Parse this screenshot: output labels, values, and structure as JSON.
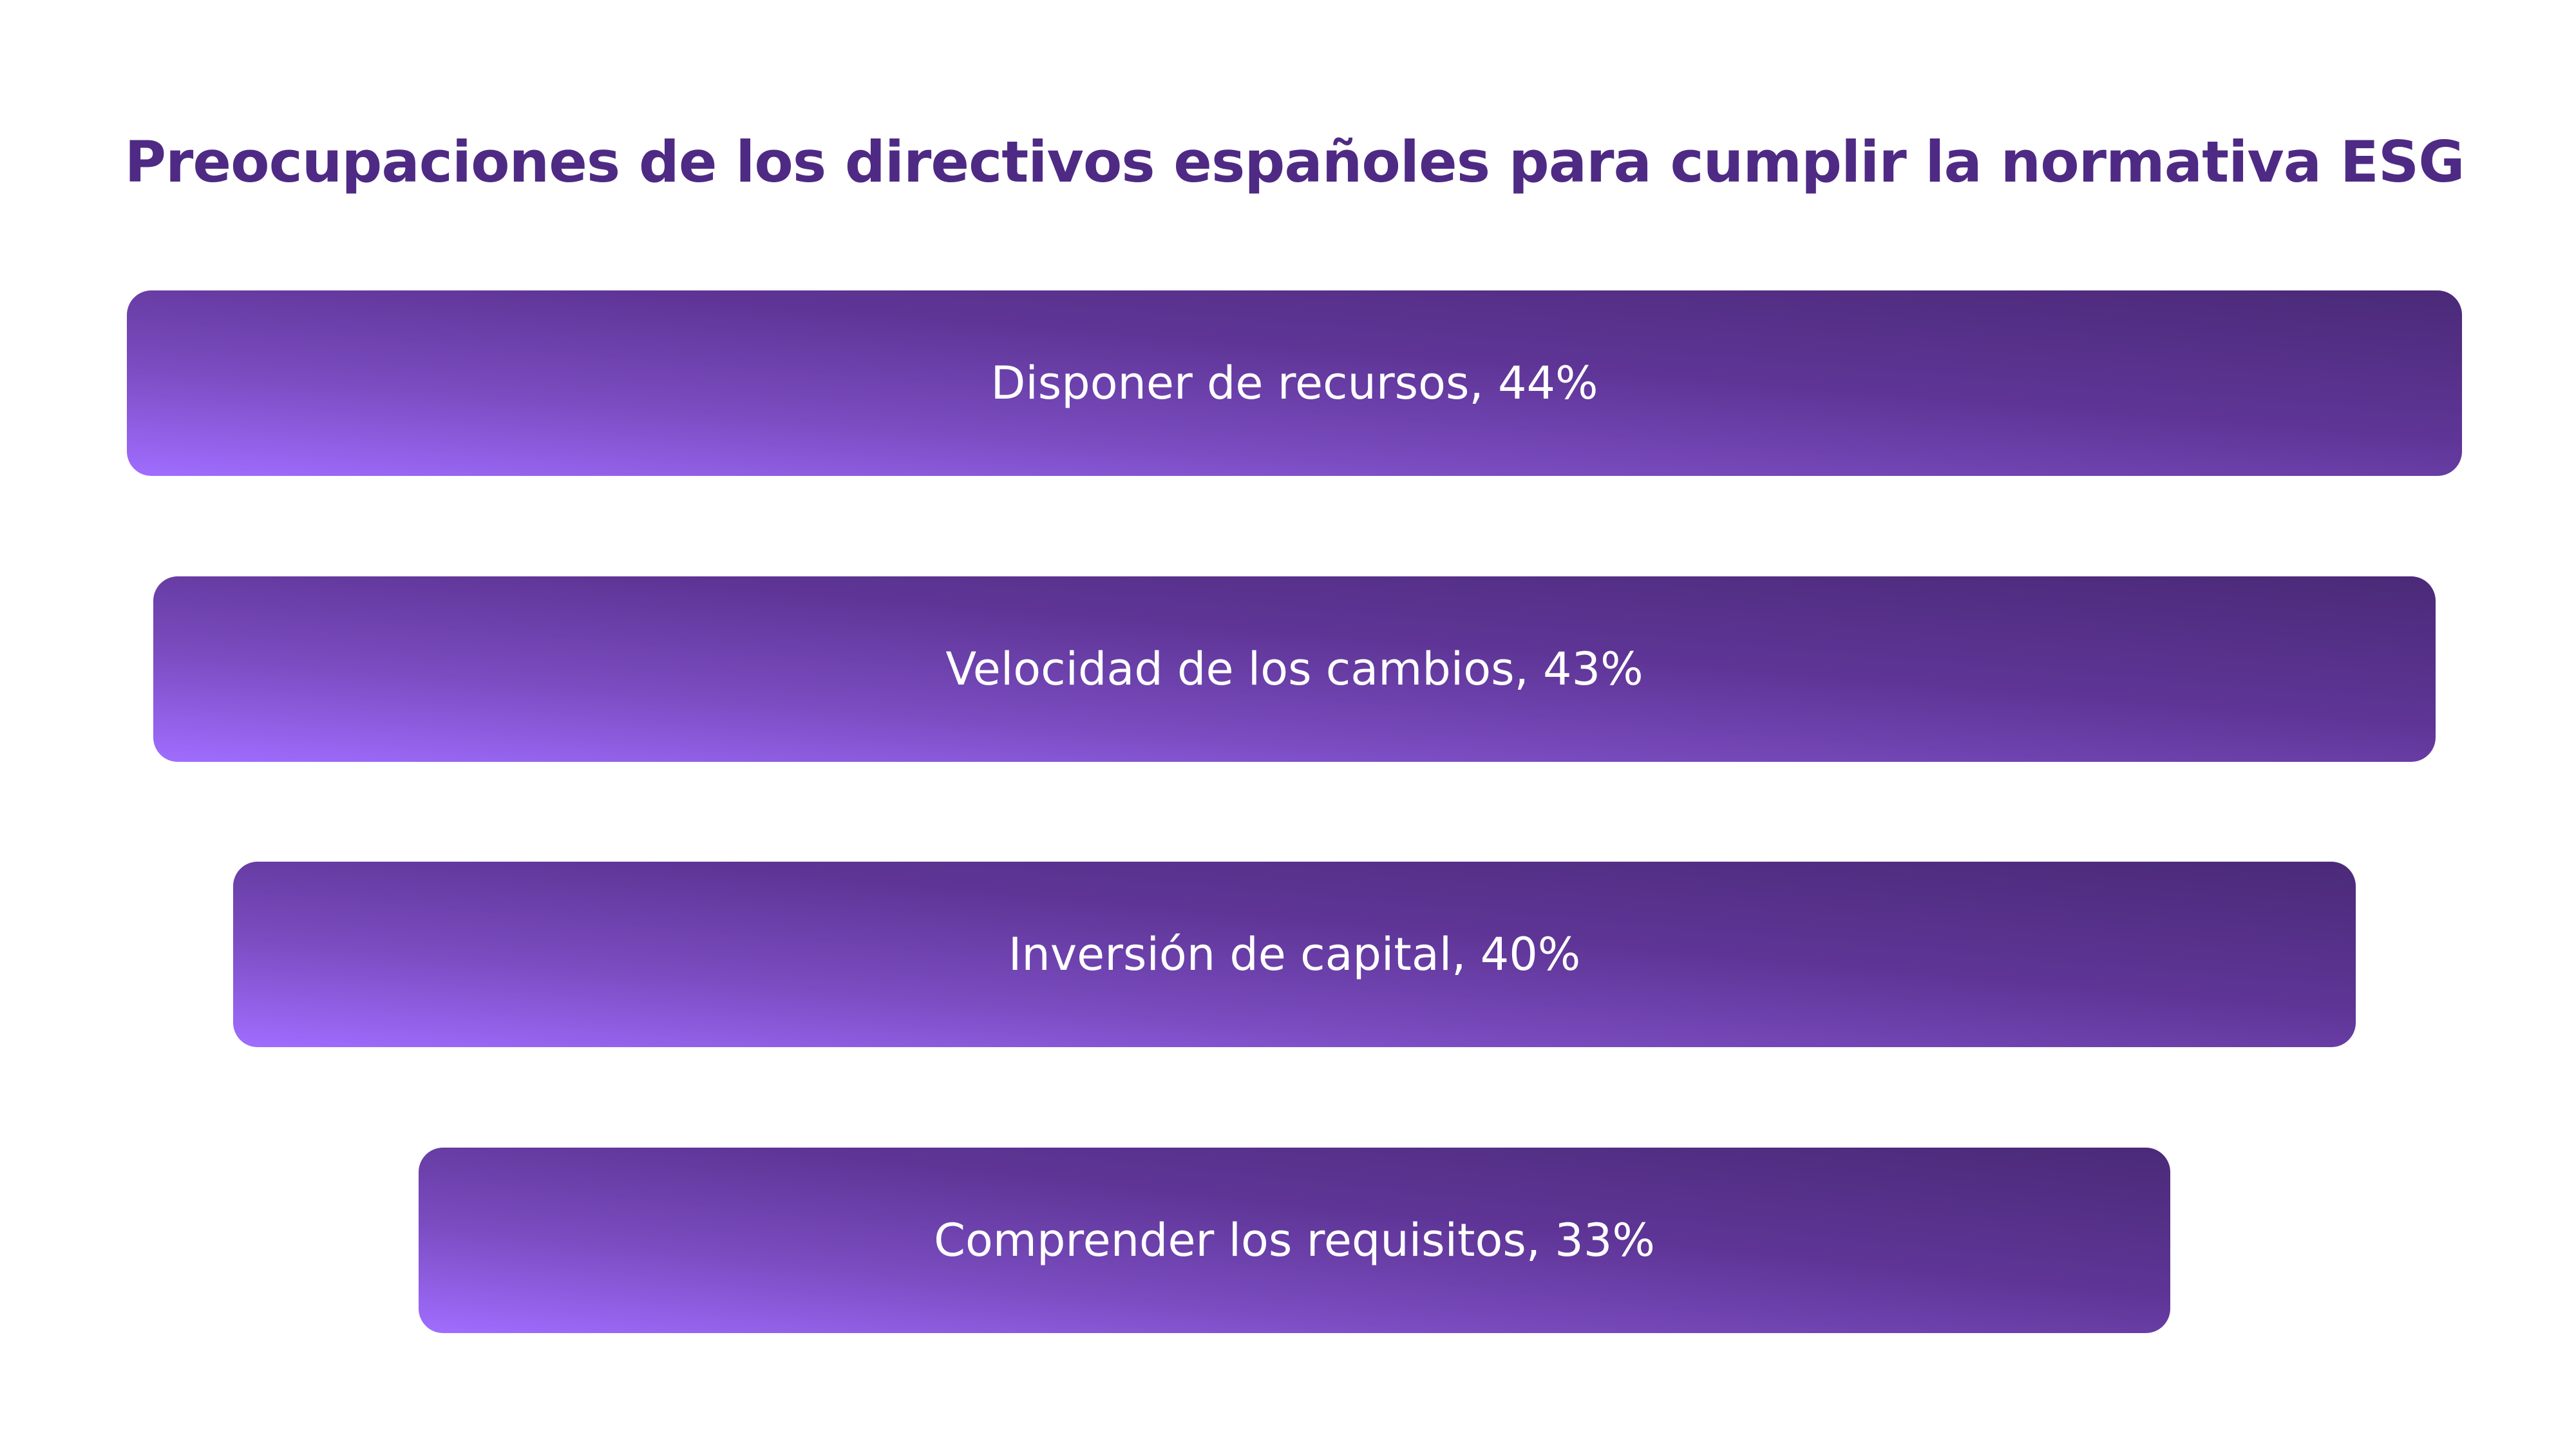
{
  "chart_data": {
    "type": "bar",
    "orientation": "horizontal-centered",
    "title": "Preocupaciones de los directivos españoles para cumplir la normativa ESG",
    "categories": [
      "Disponer de recursos",
      "Velocidad de los cambios",
      "Inversión de capital",
      "Comprender los requisitos"
    ],
    "values": [
      44,
      43,
      40,
      33
    ],
    "labels": [
      "Disponer de recursos, 44%",
      "Velocidad de los cambios, 43%",
      "Inversión de capital, 40%",
      "Comprender los requisitos, 33%"
    ],
    "unit": "%",
    "colors": {
      "gradient_start": "#a06dff",
      "gradient_end": "#4b2a78",
      "title": "#4e2a84",
      "label": "#ffffff"
    },
    "grid": false
  }
}
